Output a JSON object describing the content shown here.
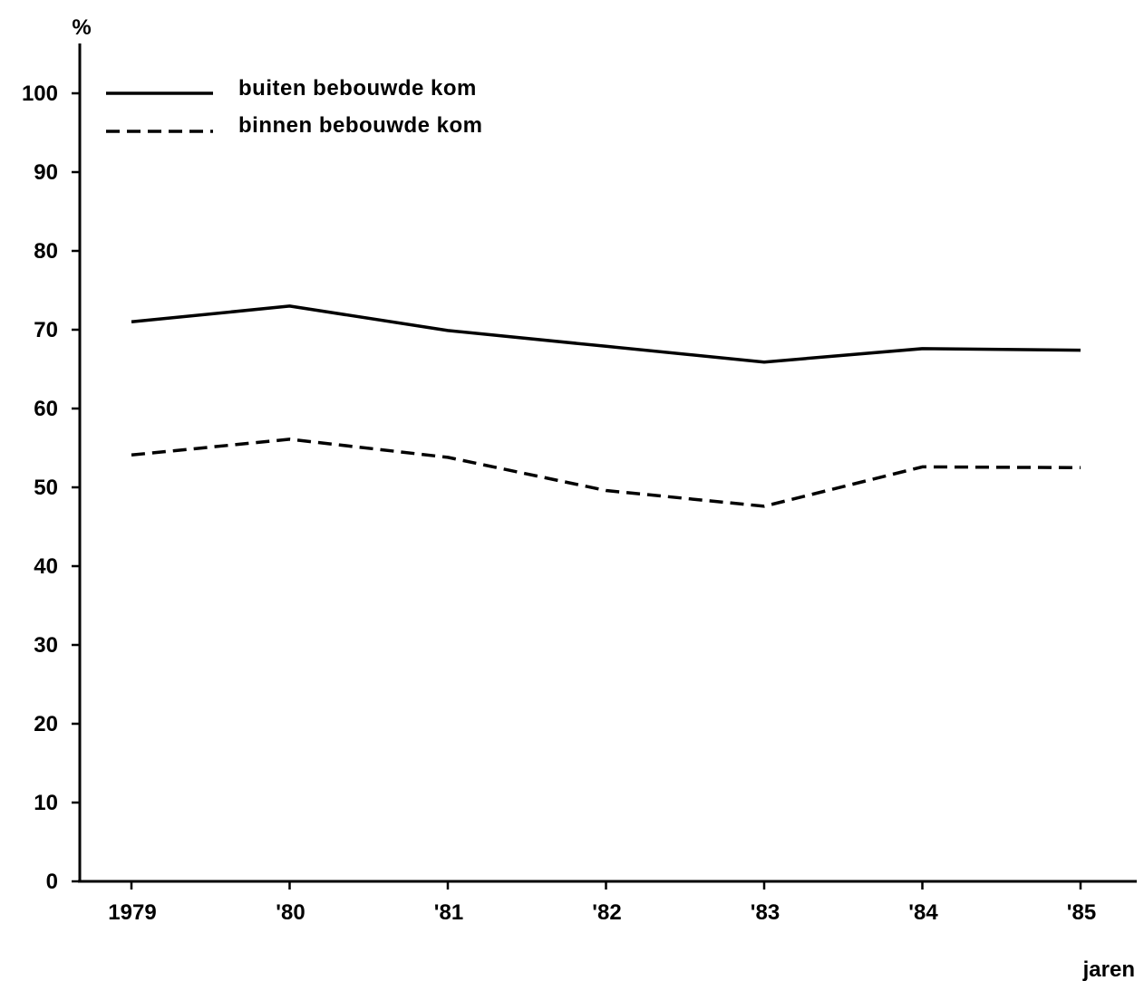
{
  "chart_data": {
    "type": "line",
    "ylabel": "%",
    "xlabel": "jaren",
    "categories": [
      "1979",
      "'80",
      "'81",
      "'82",
      "'83",
      "'84",
      "'85"
    ],
    "ylim": [
      0,
      100
    ],
    "yticks": [
      0,
      10,
      20,
      30,
      40,
      50,
      60,
      70,
      80,
      90,
      100
    ],
    "grid": false,
    "legend": "top-left",
    "series": [
      {
        "name": "buiten bebouwde kom",
        "style": "solid",
        "color": "#000000",
        "values": [
          71.0,
          73.0,
          69.9,
          67.9,
          65.9,
          67.6,
          67.4
        ]
      },
      {
        "name": "binnen bebouwde kom",
        "style": "dashed",
        "color": "#000000",
        "values": [
          54.1,
          56.1,
          53.8,
          49.6,
          47.6,
          52.6,
          52.5
        ]
      }
    ]
  }
}
